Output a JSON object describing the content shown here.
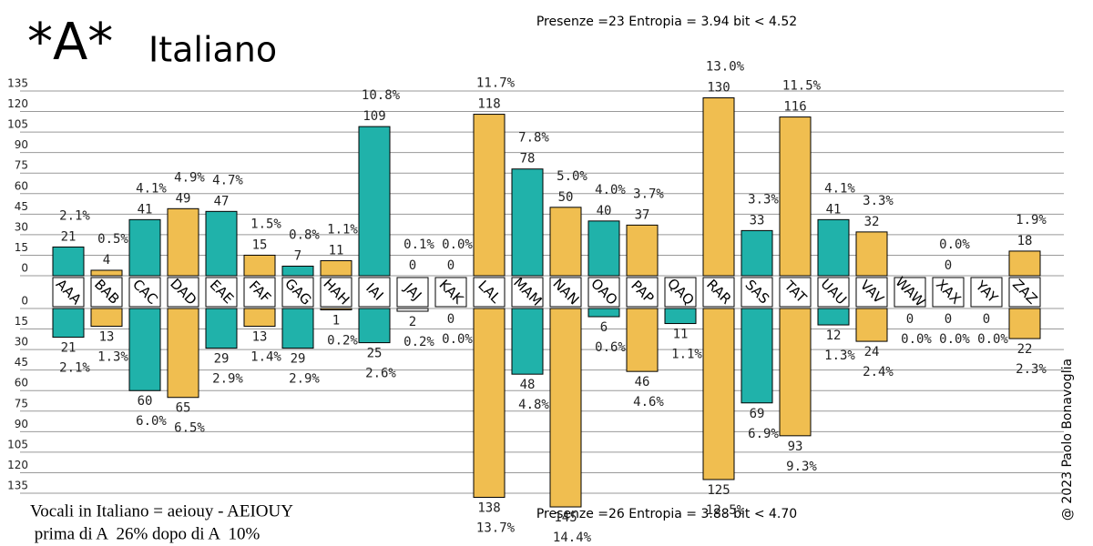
{
  "chart_data": {
    "type": "mirrored-bar",
    "title": "*A*",
    "subtitle": "Italiano",
    "top_note": "Presenze =23 Entropia = 3.94 bit < 4.52",
    "bottom_note": "Presenze =26 Entropia = 3.88 bit < 4.70",
    "footer_lines": [
      "Vocali in Italiano = aeiouy - AEIOUY",
      " prima di A  26% dopo di A  10%"
    ],
    "credit": "@ 2023 Paolo Bonavoglia",
    "categories": [
      "AAA",
      "BAB",
      "CAC",
      "DAD",
      "EAE",
      "FAF",
      "GAG",
      "HAH",
      "IAI",
      "JAJ",
      "KAK",
      "LAL",
      "MAM",
      "NAN",
      "OAO",
      "PAP",
      "QAQ",
      "RAR",
      "SAS",
      "TAT",
      "UAU",
      "VAV",
      "WAW",
      "XAX",
      "YAY",
      "ZAZ"
    ],
    "colors": [
      "#20b2aa",
      "#f0be50",
      "#20b2aa",
      "#f0be50",
      "#20b2aa",
      "#f0be50",
      "#20b2aa",
      "#f0be50",
      "#20b2aa",
      "#ffffff",
      "#ffffff",
      "#f0be50",
      "#20b2aa",
      "#f0be50",
      "#20b2aa",
      "#f0be50",
      "#20b2aa",
      "#f0be50",
      "#20b2aa",
      "#f0be50",
      "#20b2aa",
      "#f0be50",
      "#ffffff",
      "#ffffff",
      "#ffffff",
      "#f0be50"
    ],
    "top_values": [
      21,
      4,
      41,
      49,
      47,
      15,
      7,
      11,
      109,
      0,
      0,
      118,
      78,
      50,
      40,
      37,
      null,
      130,
      33,
      116,
      41,
      32,
      null,
      0,
      null,
      18
    ],
    "top_percents": [
      "2.1%",
      "0.5%",
      "4.1%",
      "4.9%",
      "4.7%",
      "1.5%",
      "0.8%",
      "1.1%",
      "10.8%",
      "0.1%",
      "0.0%",
      "11.7%",
      "7.8%",
      "5.0%",
      "4.0%",
      "3.7%",
      null,
      "13.0%",
      "3.3%",
      "11.5%",
      "4.1%",
      "3.3%",
      null,
      "0.0%",
      null,
      "1.9%"
    ],
    "bottom_values": [
      21,
      13,
      60,
      65,
      29,
      13,
      29,
      1,
      25,
      2,
      0,
      138,
      48,
      145,
      6,
      46,
      11,
      125,
      69,
      93,
      12,
      24,
      0,
      0,
      0,
      22
    ],
    "bottom_percents": [
      "2.1%",
      "1.3%",
      "6.0%",
      "6.5%",
      "2.9%",
      "1.4%",
      "2.9%",
      "0.2%",
      "2.6%",
      "0.2%",
      "0.0%",
      "13.7%",
      "4.8%",
      "14.4%",
      "0.6%",
      "4.6%",
      "1.1%",
      "12.5%",
      "6.9%",
      "9.3%",
      "1.3%",
      "2.4%",
      "0.0%",
      "0.0%",
      "0.0%",
      "2.3%"
    ],
    "ylim": [
      0,
      135
    ],
    "yticks": [
      0,
      15,
      30,
      45,
      60,
      75,
      90,
      105,
      120,
      135
    ],
    "grid": true
  }
}
